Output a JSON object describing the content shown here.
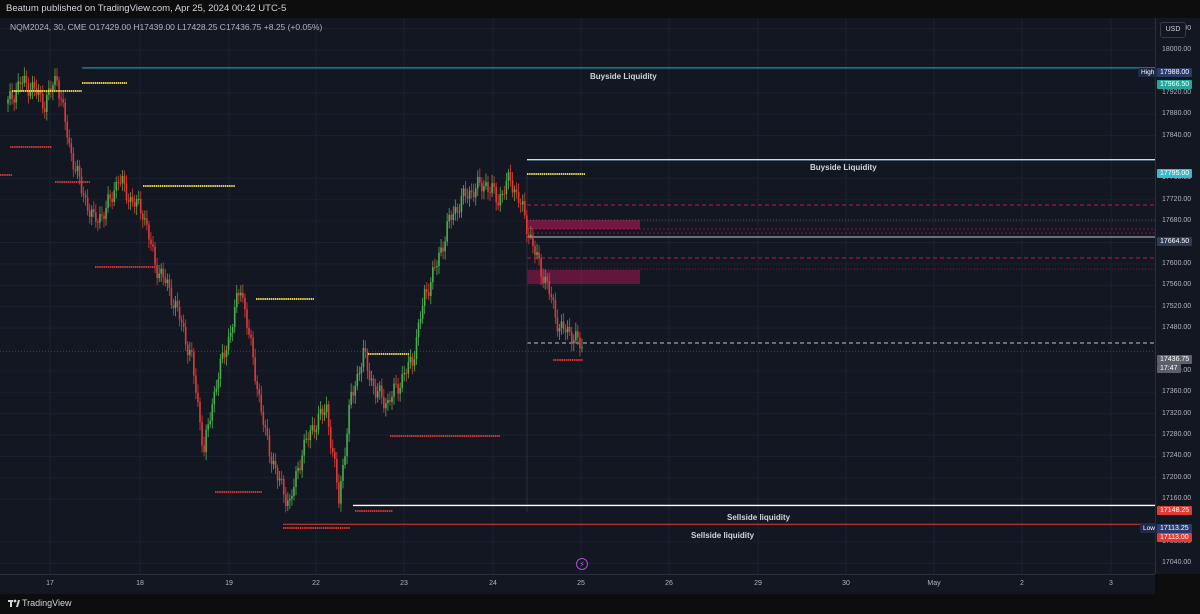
{
  "header": {
    "publish_text": "Beatum published on TradingView.com, Apr 25, 2024 00:42 UTC-5"
  },
  "legend": {
    "text": "NQM2024, 30, CME  O17429.00  H17439.00  L17428.25  C17436.75  +8.25 (+0.05%)"
  },
  "currency": "USD",
  "price_ticks": [
    "18040.00",
    "18000.00",
    "17920.00",
    "17880.00",
    "17840.00",
    "17760.00",
    "17720.00",
    "17680.00",
    "17640.00",
    "17600.00",
    "17560.00",
    "17520.00",
    "17480.00",
    "17400.00",
    "17360.00",
    "17320.00",
    "17280.00",
    "17240.00",
    "17200.00",
    "17160.00",
    "17080.00",
    "17040.00"
  ],
  "price_tags": {
    "high_label": "High",
    "high_value": "17988.00",
    "bsl1_value": "17966.50",
    "bsl2_value": "17795.00",
    "level_value": "17664.50",
    "last_price": "17436.75",
    "countdown": "17:47",
    "ssl1_value": "17148.25",
    "low_label": "Low",
    "low_value": "17113.25",
    "ssl2_value": "17113.00"
  },
  "annotations": {
    "buyside_1": "Buyside Liquidity",
    "buyside_2": "Buyside Liquidity",
    "sellside_1": "Sellside liquidity",
    "sellside_2": "Sellside liquidity"
  },
  "time_labels": [
    "17",
    "18",
    "19",
    "22",
    "23",
    "24",
    "25",
    "26",
    "29",
    "30",
    "May",
    "2",
    "3"
  ],
  "footer": {
    "brand": "TradingView"
  },
  "colors": {
    "up": "#4caf50",
    "down": "#e53935",
    "yellow": "#fbe84a",
    "teal": "#26c6da",
    "white": "#ffffff",
    "magenta": "#e91e63",
    "pink_zone": "#c2185b"
  },
  "chart_data": {
    "type": "candlestick",
    "symbol": "NQM2024",
    "timeframe": "30",
    "exchange": "CME",
    "ohlc_last": {
      "open": 17429.0,
      "high": 17439.0,
      "low": 17428.25,
      "close": 17436.75,
      "change": 8.25,
      "change_pct": 0.05
    },
    "ylim": [
      17020,
      18060
    ],
    "levels": [
      {
        "label": "Buyside Liquidity",
        "price": 17966.5
      },
      {
        "label": "Buyside Liquidity",
        "price": 17795.0
      },
      {
        "label": "Sellside liquidity",
        "price": 17148.25
      },
      {
        "label": "Sellside liquidity",
        "price": 17113.0
      }
    ],
    "close_path": [
      [
        0,
        17900
      ],
      [
        6,
        17940
      ],
      [
        12,
        17930
      ],
      [
        18,
        17900
      ],
      [
        24,
        17950
      ],
      [
        30,
        17820
      ],
      [
        36,
        17740
      ],
      [
        42,
        17680
      ],
      [
        48,
        17700
      ],
      [
        54,
        17760
      ],
      [
        60,
        17720
      ],
      [
        66,
        17700
      ],
      [
        72,
        17600
      ],
      [
        78,
        17560
      ],
      [
        84,
        17500
      ],
      [
        90,
        17420
      ],
      [
        96,
        17250
      ],
      [
        102,
        17380
      ],
      [
        108,
        17460
      ],
      [
        114,
        17560
      ],
      [
        120,
        17420
      ],
      [
        126,
        17280
      ],
      [
        132,
        17200
      ],
      [
        138,
        17150
      ],
      [
        144,
        17250
      ],
      [
        150,
        17300
      ],
      [
        156,
        17330
      ],
      [
        162,
        17160
      ],
      [
        168,
        17350
      ],
      [
        174,
        17430
      ],
      [
        180,
        17360
      ],
      [
        186,
        17340
      ],
      [
        192,
        17380
      ],
      [
        198,
        17420
      ],
      [
        204,
        17540
      ],
      [
        210,
        17600
      ],
      [
        216,
        17680
      ],
      [
        222,
        17720
      ],
      [
        228,
        17740
      ],
      [
        234,
        17750
      ],
      [
        240,
        17720
      ],
      [
        246,
        17760
      ],
      [
        252,
        17700
      ],
      [
        258,
        17620
      ],
      [
        264,
        17560
      ],
      [
        270,
        17480
      ],
      [
        276,
        17470
      ],
      [
        282,
        17437
      ]
    ]
  }
}
